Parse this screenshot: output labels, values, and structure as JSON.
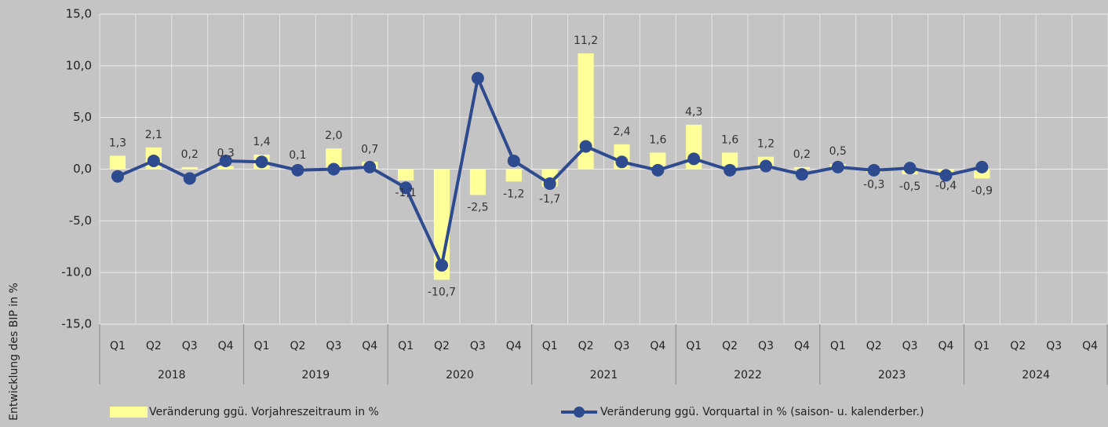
{
  "chart_data": {
    "type": "bar",
    "ylabel": "Entwicklung des BIP in %",
    "categories": [
      "Q1",
      "Q2",
      "Q3",
      "Q4",
      "Q1",
      "Q2",
      "Q3",
      "Q4",
      "Q1",
      "Q2",
      "Q3",
      "Q4",
      "Q1",
      "Q2",
      "Q3",
      "Q4",
      "Q1",
      "Q2",
      "Q3",
      "Q4",
      "Q1",
      "Q2",
      "Q3",
      "Q4",
      "Q1",
      "Q2",
      "Q3",
      "Q4"
    ],
    "category_groups": [
      "2018",
      "2019",
      "2020",
      "2021",
      "2022",
      "2023",
      "2024"
    ],
    "ylim": [
      -15,
      15
    ],
    "yticks": [
      {
        "value": -15,
        "label": "-15,0"
      },
      {
        "value": -10,
        "label": "-10,0"
      },
      {
        "value": -5,
        "label": "-5,0"
      },
      {
        "value": 0,
        "label": "0,0"
      },
      {
        "value": 5,
        "label": "5,0"
      },
      {
        "value": 10,
        "label": "10,0"
      },
      {
        "value": 15,
        "label": "15,0"
      }
    ],
    "grid": true,
    "legend": "bottom",
    "series": [
      {
        "name": "Veränderung ggü. Vorjahreszeitraum in %",
        "type": "bar",
        "color": "#ffff99",
        "values": [
          1.3,
          2.1,
          0.2,
          0.3,
          1.4,
          0.1,
          2.0,
          0.7,
          -1.1,
          -10.7,
          -2.5,
          -1.2,
          -1.7,
          11.2,
          2.4,
          1.6,
          4.3,
          1.6,
          1.2,
          0.2,
          0.5,
          -0.3,
          -0.5,
          -0.4,
          -0.9,
          null,
          null,
          null
        ],
        "value_labels": [
          "1,3",
          "2,1",
          "0,2",
          "0,3",
          "1,4",
          "0,1",
          "2,0",
          "0,7",
          "-1,1",
          "-10,7",
          "-2,5",
          "-1,2",
          "-1,7",
          "11,2",
          "2,4",
          "1,6",
          "4,3",
          "1,6",
          "1,2",
          "0,2",
          "0,5",
          "-0,3",
          "-0,5",
          "-0,4",
          "-0,9",
          null,
          null,
          null
        ]
      },
      {
        "name": "Veränderung ggü. Vorquartal in % (saison- u. kalenderber.)",
        "type": "line",
        "color": "#2f4b8f",
        "values": [
          -0.7,
          0.8,
          -0.9,
          0.8,
          0.7,
          -0.1,
          0.0,
          0.2,
          -1.8,
          -9.3,
          8.8,
          0.8,
          -1.4,
          2.2,
          0.7,
          -0.1,
          1.0,
          -0.1,
          0.3,
          -0.5,
          0.2,
          -0.1,
          0.1,
          -0.6,
          0.2,
          null,
          null,
          null
        ]
      }
    ]
  }
}
